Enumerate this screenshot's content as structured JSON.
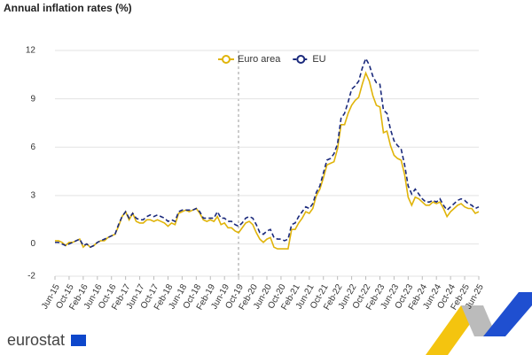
{
  "chart_data": {
    "type": "line",
    "title": "Annual inflation rates (%)",
    "categories": [
      "Jun-15",
      null,
      null,
      null,
      "Oct-15",
      null,
      null,
      null,
      "Feb-16",
      null,
      null,
      null,
      "Jun-16",
      null,
      null,
      null,
      "Oct-16",
      null,
      null,
      null,
      "Feb-17",
      null,
      null,
      null,
      "Jun-17",
      null,
      null,
      null,
      "Oct-17",
      null,
      null,
      null,
      "Feb-18",
      null,
      null,
      null,
      "Jun-18",
      null,
      null,
      null,
      "Oct-18",
      null,
      null,
      null,
      "Feb-19",
      null,
      null,
      null,
      "Jun-19",
      null,
      null,
      null,
      "Oct-19",
      null,
      null,
      null,
      "Feb-20",
      null,
      null,
      null,
      "Jun-20",
      null,
      null,
      null,
      "Oct-20",
      null,
      null,
      null,
      "Feb-21",
      null,
      null,
      null,
      "Jun-21",
      null,
      null,
      null,
      "Oct-21",
      null,
      null,
      null,
      "Feb-22",
      null,
      null,
      null,
      "Jun-22",
      null,
      null,
      null,
      "Oct-22",
      null,
      null,
      null,
      "Feb-23",
      null,
      null,
      null,
      "Jun-23",
      null,
      null,
      null,
      "Oct-23",
      null,
      null,
      null,
      "Feb-24",
      null,
      null,
      null,
      "Jun-24",
      null,
      null,
      null,
      "Oct-24",
      null,
      null,
      null,
      "Feb-25",
      null,
      null,
      null,
      "Jun-25"
    ],
    "series": [
      {
        "name": "Euro area",
        "color": "#e0b40a",
        "line_style": "solid",
        "values": [
          0.2,
          0.2,
          0.1,
          -0.1,
          0.1,
          0.1,
          0.2,
          0.3,
          -0.2,
          0.0,
          -0.2,
          -0.1,
          0.1,
          0.2,
          0.2,
          0.4,
          0.5,
          0.6,
          1.1,
          1.7,
          2.0,
          1.5,
          1.9,
          1.4,
          1.3,
          1.3,
          1.5,
          1.5,
          1.4,
          1.5,
          1.4,
          1.3,
          1.1,
          1.3,
          1.2,
          1.9,
          2.0,
          2.1,
          2.0,
          2.1,
          2.2,
          1.9,
          1.5,
          1.4,
          1.5,
          1.4,
          1.7,
          1.2,
          1.3,
          1.0,
          1.0,
          0.8,
          0.7,
          1.0,
          1.3,
          1.4,
          1.2,
          0.7,
          0.3,
          0.1,
          0.3,
          0.4,
          -0.2,
          -0.3,
          -0.3,
          -0.3,
          -0.3,
          0.9,
          0.9,
          1.3,
          1.6,
          2.0,
          1.9,
          2.2,
          3.0,
          3.4,
          4.1,
          4.9,
          5.0,
          5.1,
          5.9,
          7.4,
          7.4,
          8.1,
          8.6,
          8.9,
          9.1,
          9.9,
          10.6,
          10.1,
          9.2,
          8.6,
          8.5,
          6.9,
          7.0,
          6.1,
          5.5,
          5.3,
          5.2,
          4.3,
          2.9,
          2.4,
          2.9,
          2.8,
          2.6,
          2.4,
          2.4,
          2.6,
          2.5,
          2.6,
          2.2,
          1.7,
          2.0,
          2.2,
          2.4,
          2.5,
          2.3,
          2.2,
          2.2,
          1.9,
          2.0
        ]
      },
      {
        "name": "EU",
        "color": "#1b2a7c",
        "line_style": "dashed",
        "values": [
          0.1,
          0.1,
          0.0,
          -0.1,
          0.0,
          0.1,
          0.2,
          0.3,
          -0.1,
          0.0,
          -0.2,
          -0.1,
          0.1,
          0.2,
          0.3,
          0.4,
          0.5,
          0.6,
          1.2,
          1.7,
          2.0,
          1.6,
          1.9,
          1.6,
          1.5,
          1.5,
          1.7,
          1.8,
          1.7,
          1.8,
          1.7,
          1.6,
          1.4,
          1.5,
          1.4,
          2.0,
          2.1,
          2.1,
          2.1,
          2.1,
          2.2,
          2.0,
          1.6,
          1.6,
          1.6,
          1.6,
          2.0,
          1.6,
          1.6,
          1.4,
          1.4,
          1.2,
          1.1,
          1.3,
          1.6,
          1.7,
          1.6,
          1.2,
          0.7,
          0.6,
          0.8,
          0.9,
          0.4,
          0.3,
          0.3,
          0.2,
          0.3,
          1.2,
          1.3,
          1.7,
          2.0,
          2.3,
          2.2,
          2.5,
          3.2,
          3.6,
          4.4,
          5.2,
          5.3,
          5.6,
          6.2,
          7.8,
          8.1,
          8.8,
          9.6,
          9.8,
          10.1,
          10.9,
          11.5,
          11.1,
          10.4,
          10.0,
          9.9,
          8.3,
          8.1,
          7.1,
          6.4,
          6.1,
          5.9,
          4.9,
          3.6,
          3.1,
          3.4,
          3.1,
          2.8,
          2.6,
          2.6,
          2.7,
          2.6,
          2.8,
          2.4,
          2.1,
          2.3,
          2.5,
          2.7,
          2.8,
          2.7,
          2.5,
          2.4,
          2.2,
          2.3
        ]
      }
    ],
    "ylim": [
      -2,
      12
    ],
    "yticks": [
      -2,
      0,
      3,
      6,
      9,
      12
    ],
    "grid": true,
    "legend": "top"
  },
  "footer": {
    "logo": "eurostat"
  }
}
